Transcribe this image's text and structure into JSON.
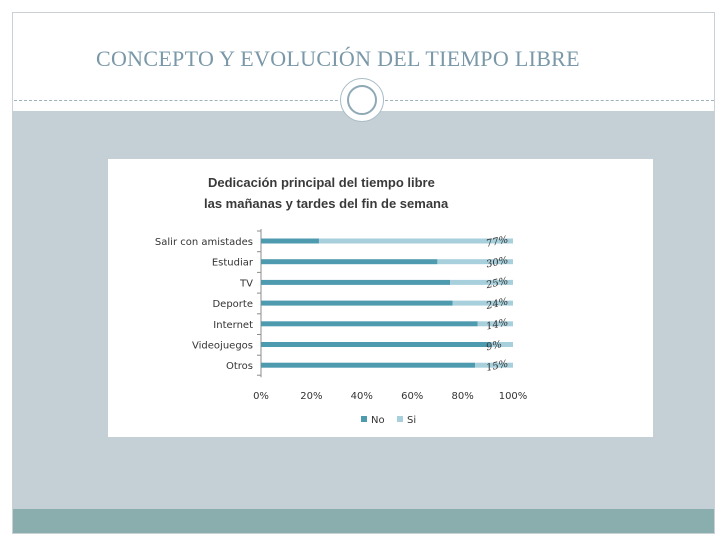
{
  "slide": {
    "title": "CONCEPTO Y EVOLUCIÓN DEL TIEMPO LIBRE"
  },
  "colors": {
    "no": "#4e9bb0",
    "si": "#a7d0dc",
    "title": "#7a98a8",
    "band": "#c5d0d6",
    "footer": "#8aadae"
  },
  "chart_data": {
    "type": "bar",
    "orientation": "horizontal",
    "stacked": true,
    "percent_stacked": true,
    "title": "Dedicación principal del tiempo libre",
    "subtitle": "las mañanas y tardes del fin de semana",
    "categories": [
      "Salir con amistades",
      "Estudiar",
      "TV",
      "Deporte",
      "Internet",
      "Videojuegos",
      "Otros"
    ],
    "series": [
      {
        "name": "No",
        "color": "#4e9bb0",
        "values": [
          23,
          70,
          75,
          76,
          86,
          91,
          85
        ]
      },
      {
        "name": "Si",
        "color": "#a7d0dc",
        "values": [
          77,
          30,
          25,
          24,
          14,
          9,
          15
        ]
      }
    ],
    "annotations": [
      "77%",
      "30%",
      "25%",
      "24%",
      "14%",
      "9%",
      "15%"
    ],
    "x_ticks": [
      "0%",
      "20%",
      "40%",
      "60%",
      "80%",
      "100%"
    ],
    "xlim": [
      0,
      100
    ],
    "legend": {
      "position": "bottom",
      "entries": [
        "No",
        "Si"
      ]
    },
    "grid": false
  }
}
